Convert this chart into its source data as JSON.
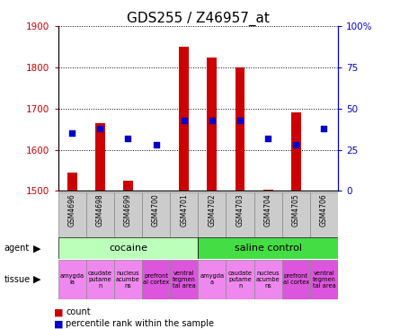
{
  "title": "GDS255 / Z46957_at",
  "samples": [
    "GSM4696",
    "GSM4698",
    "GSM4699",
    "GSM4700",
    "GSM4701",
    "GSM4702",
    "GSM4703",
    "GSM4704",
    "GSM4705",
    "GSM4706"
  ],
  "counts": [
    1545,
    1665,
    1525,
    1500,
    1850,
    1825,
    1800,
    1502,
    1690,
    1500
  ],
  "percentiles": [
    35,
    38,
    32,
    28,
    43,
    43,
    43,
    32,
    28,
    38
  ],
  "ylim_left": [
    1500,
    1900
  ],
  "ylim_right": [
    0,
    100
  ],
  "yticks_left": [
    1500,
    1600,
    1700,
    1800,
    1900
  ],
  "yticks_right": [
    0,
    25,
    50,
    75,
    100
  ],
  "bar_color": "#cc0000",
  "dot_color": "#0000cc",
  "bar_bottom": 1500,
  "agent_groups": [
    {
      "label": "cocaine",
      "start": 0,
      "end": 5,
      "color": "#bbffbb"
    },
    {
      "label": "saline control",
      "start": 5,
      "end": 10,
      "color": "#44dd44"
    }
  ],
  "tissue_labels": [
    "amygda\nla",
    "caudate\nputame\nn",
    "nucleus\nacumbe\nns",
    "prefront\nal cortex",
    "ventral\ntegmen\ntal area",
    "amygda\na",
    "caudate\nputame\nn",
    "nucleus\nacumbe\nns",
    "prefront\nal cortex",
    "ventral\ntegmen\ntal area"
  ],
  "tissue_colors": [
    "#ee88ee",
    "#ee88ee",
    "#ee88ee",
    "#dd55dd",
    "#dd55dd",
    "#ee88ee",
    "#ee88ee",
    "#ee88ee",
    "#dd55dd",
    "#dd55dd"
  ],
  "xtick_bg_color": "#cccccc",
  "background_color": "#ffffff",
  "plot_bg_color": "#ffffff",
  "grid_color": "#000000",
  "left_axis_color": "#cc0000",
  "right_axis_color": "#0000cc",
  "title_fontsize": 11,
  "tick_fontsize": 7.5,
  "label_fontsize": 8
}
